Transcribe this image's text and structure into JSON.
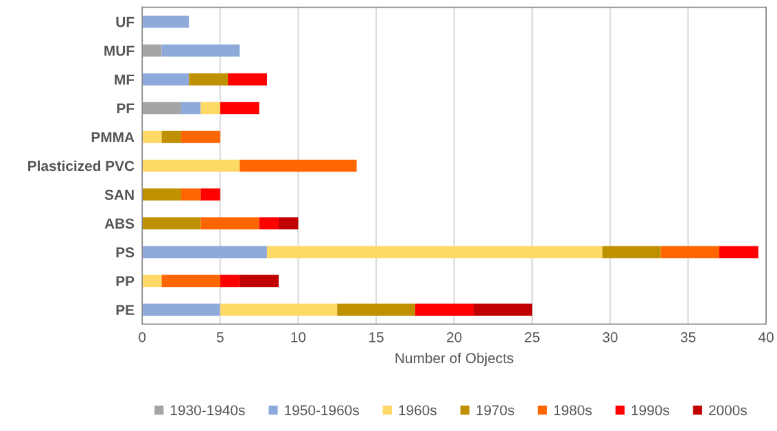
{
  "chart_data": {
    "type": "bar",
    "orientation": "horizontal",
    "stacked": true,
    "categories": [
      "UF",
      "MUF",
      "MF",
      "PF",
      "PMMA",
      "Plasticized PVC",
      "SAN",
      "ABS",
      "PS",
      "PP",
      "PE"
    ],
    "series": [
      {
        "name": "1930-1940s",
        "color": "#a5a5a5",
        "values": [
          null,
          1.25,
          null,
          2.5,
          null,
          null,
          null,
          null,
          null,
          null,
          null
        ]
      },
      {
        "name": "1950-1960s",
        "color": "#8eaadb",
        "values": [
          3,
          5,
          3,
          1.25,
          null,
          null,
          null,
          null,
          8,
          null,
          5
        ]
      },
      {
        "name": "1960s",
        "color": "#ffd966",
        "values": [
          null,
          null,
          null,
          1.25,
          1.25,
          6.25,
          null,
          null,
          21.5,
          1.25,
          7.5
        ]
      },
      {
        "name": "1970s",
        "color": "#bf9000",
        "values": [
          null,
          null,
          2.5,
          null,
          1.25,
          null,
          2.5,
          3.75,
          3.75,
          null,
          5
        ]
      },
      {
        "name": "1980s",
        "color": "#ff6600",
        "values": [
          null,
          null,
          null,
          null,
          2.5,
          7.5,
          1.25,
          3.75,
          3.75,
          3.75,
          null
        ]
      },
      {
        "name": "1990s",
        "color": "#ff0000",
        "values": [
          null,
          null,
          2.5,
          2.5,
          null,
          null,
          1.25,
          1.25,
          2.5,
          1.25,
          3.75
        ]
      },
      {
        "name": "2000s",
        "color": "#c00000",
        "values": [
          null,
          null,
          null,
          null,
          null,
          null,
          null,
          1.25,
          null,
          2.5,
          3.75
        ]
      }
    ],
    "xlabel": "Number of Objects",
    "xlim": [
      0,
      40
    ],
    "xticks": [
      0,
      5,
      10,
      15,
      20,
      25,
      30,
      35,
      40
    ],
    "grid": "x",
    "legend": "bottom"
  }
}
